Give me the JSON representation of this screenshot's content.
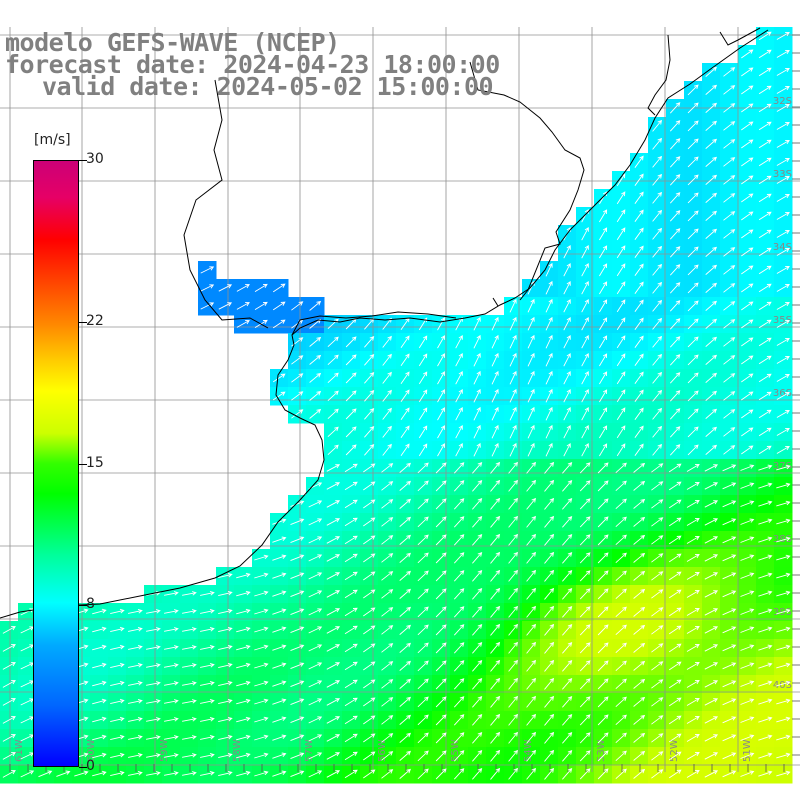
{
  "title": {
    "line1": "modelo GEFS-WAVE (NCEP)",
    "line2": "forecast date: 2024-04-23 18:00:00",
    "line3": "valid date: 2024-05-02 15:00:00"
  },
  "colorbar": {
    "unit": "[m/s]",
    "min": 0,
    "max": 30,
    "ticks": [
      "0",
      "8",
      "15",
      "22",
      "30"
    ],
    "tick_values": [
      0,
      8,
      15,
      22,
      30
    ],
    "colors": [
      "#0000ff",
      "#00ffff",
      "#00ff00",
      "#ffff00",
      "#ff0000",
      "#cc0077"
    ]
  },
  "map": {
    "field": "wind speed with direction arrows",
    "land_color": "#ffffff",
    "coastline_color": "#000000",
    "grid_color": "#808080",
    "lat_labels": [
      "32S",
      "33S",
      "34S",
      "35S",
      "36S",
      "37S",
      "38S",
      "39S",
      "40S"
    ],
    "lon_labels": [
      "61W",
      "60W",
      "59W",
      "58W",
      "57W",
      "56W",
      "55W",
      "54W",
      "53W",
      "52W",
      "51W"
    ]
  }
}
